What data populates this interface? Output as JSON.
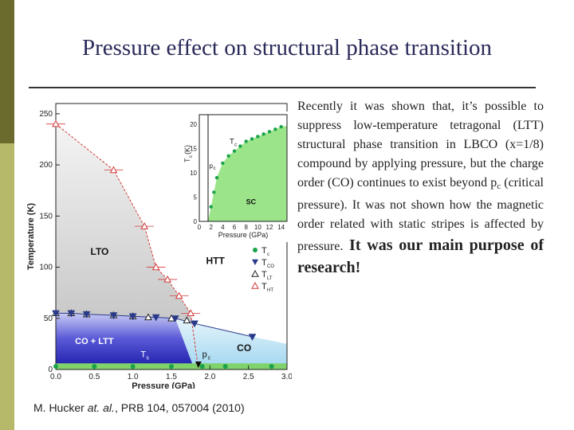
{
  "title": "Pressure effect on structural phase transition",
  "body": {
    "para1": "Recently it was shown that, it’s possible to suppress low-temperature tetragonal (LTT) structural phase transition in LBCO (x=1/8) compound by applying pressure, but the charge order (CO) continues to exist beyond p",
    "para1_sub": "c",
    "para2": " (critical pressure). It was not shown how the magnetic order related with static stripes is affected by pressure.",
    "para3": " It was our main purpose of research!"
  },
  "citation": {
    "authors": "M. Hucker ",
    "etal": "at. al.",
    "ref": ", PRB 104, 057004 (2010)"
  },
  "colors": {
    "bar_dark": "#6b6b2e",
    "bar_light": "#b7b96a",
    "title": "#2a2a5a"
  },
  "chart_data": {
    "type": "scatter",
    "xlabel": "Pressure (GPa)",
    "ylabel": "Temperature (K)",
    "xlim": [
      0,
      3.0
    ],
    "ylim": [
      0,
      260
    ],
    "x_ticks": [
      "0.0",
      "0.5",
      "1.0",
      "1.5",
      "2.0",
      "2.5",
      "3.0"
    ],
    "y_ticks": [
      "0",
      "50",
      "100",
      "150",
      "200",
      "250"
    ],
    "region_labels": [
      "LTO",
      "HTT",
      "CO + LTT",
      "CO",
      "T",
      "s",
      "p",
      "c"
    ],
    "legend": [
      {
        "label": "T",
        "sub": "c",
        "marker": "circle",
        "color": "#1aa34a"
      },
      {
        "label": "T",
        "sub": "CO",
        "marker": "triangle-down",
        "color": "#2a3a8a"
      },
      {
        "label": "T",
        "sub": "LT",
        "marker": "triangle-up-open",
        "color": "#222222"
      },
      {
        "label": "T",
        "sub": "HT",
        "marker": "triangle-up-open",
        "color": "#d43a3a"
      }
    ],
    "series": [
      {
        "name": "T_HT",
        "x": [
          0.0,
          0.75,
          1.15,
          1.3,
          1.45,
          1.6,
          1.75
        ],
        "y": [
          240,
          195,
          140,
          100,
          88,
          72,
          55
        ]
      },
      {
        "name": "T_LT",
        "x": [
          0.0,
          0.2,
          0.4,
          0.75,
          1.0,
          1.2,
          1.5,
          1.7
        ],
        "y": [
          55,
          55,
          54,
          53,
          52,
          51,
          50,
          48
        ]
      },
      {
        "name": "T_CO",
        "x": [
          0.0,
          0.2,
          0.4,
          0.75,
          1.0,
          1.3,
          1.55,
          1.8,
          2.55
        ],
        "y": [
          55,
          55,
          54,
          53,
          52,
          51,
          50,
          45,
          32
        ]
      },
      {
        "name": "T_c",
        "x": [
          0.0,
          0.5,
          1.0,
          1.5,
          1.9,
          2.2,
          2.8
        ],
        "y": [
          3,
          3,
          3,
          3,
          3,
          3,
          3
        ]
      }
    ],
    "inset": {
      "xlabel": "Pressure (GPa)",
      "ylabel": "T",
      "ylabel_sub": "c",
      "ylabel_unit": " (K)",
      "x_ticks": [
        "0",
        "2",
        "4",
        "6",
        "8",
        "10",
        "12",
        "14"
      ],
      "y_ticks": [
        "0",
        "5",
        "10",
        "15",
        "20"
      ],
      "xlim": [
        0,
        15
      ],
      "ylim": [
        0,
        22
      ],
      "labels": [
        "T",
        "c",
        "p",
        "c",
        "SC"
      ],
      "x": [
        2,
        2.5,
        3,
        4,
        5,
        6,
        7,
        8,
        9,
        10,
        11,
        12,
        13,
        14
      ],
      "y": [
        3,
        6,
        9,
        12,
        13.5,
        14.5,
        15.5,
        16.5,
        17,
        17.5,
        18,
        18.5,
        19,
        19.5
      ]
    }
  }
}
